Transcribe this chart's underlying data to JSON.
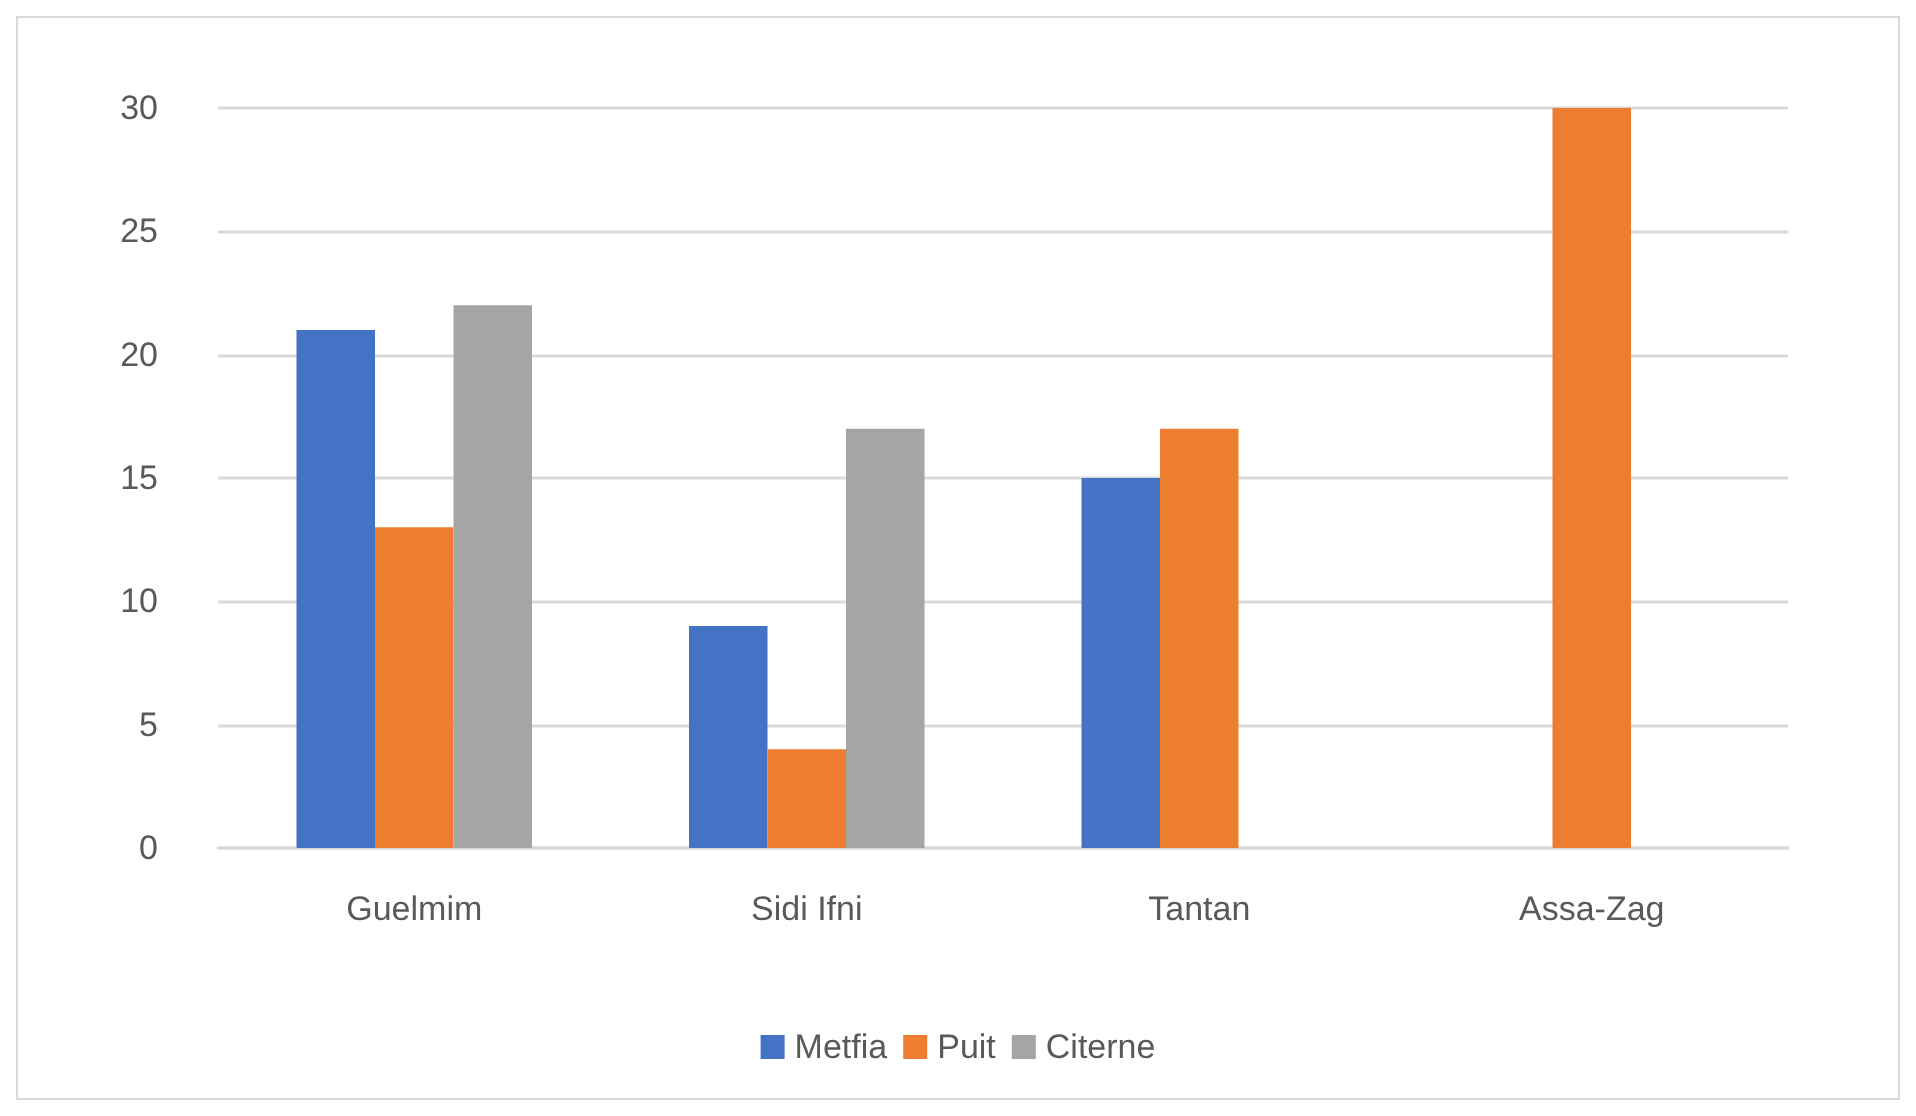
{
  "chart_data": {
    "type": "bar",
    "categories": [
      "Guelmim",
      "Sidi Ifni",
      "Tantan",
      "Assa-Zag"
    ],
    "series": [
      {
        "name": "Metfia",
        "color": "#4472c4",
        "values": [
          21,
          9,
          15,
          null
        ]
      },
      {
        "name": "Puit",
        "color": "#ed7d31",
        "values": [
          13,
          4,
          17,
          30
        ]
      },
      {
        "name": "Citerne",
        "color": "#a5a5a5",
        "values": [
          22,
          17,
          null,
          null
        ]
      }
    ],
    "ylim": [
      0,
      30
    ],
    "yticks": [
      0,
      5,
      10,
      15,
      20,
      25,
      30
    ],
    "grid": "y",
    "legend": "bottom"
  }
}
